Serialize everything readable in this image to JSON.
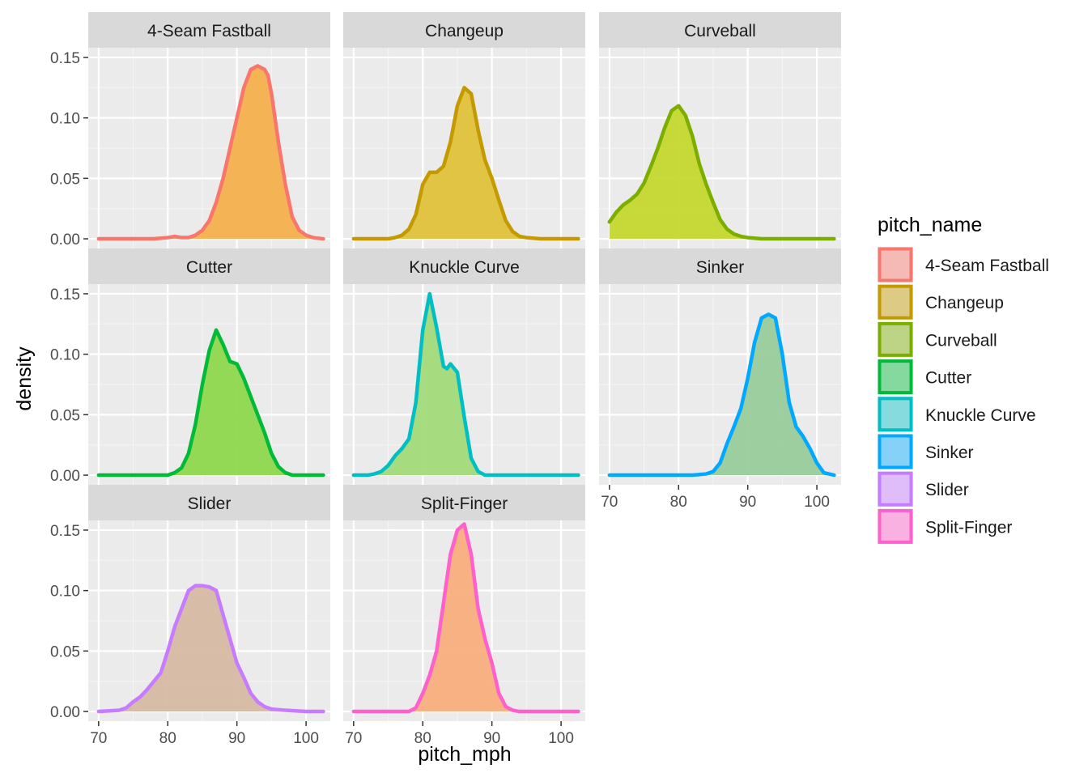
{
  "chart_data": {
    "type": "area",
    "facet_layout": "3 columns",
    "xlabel": "pitch_mph",
    "ylabel": "density",
    "xlim": [
      68.5,
      103.5
    ],
    "ylim": [
      -0.008,
      0.158
    ],
    "x_ticks": [
      70,
      80,
      90,
      100
    ],
    "x_tick_labels": [
      "70",
      "80",
      "90",
      "100"
    ],
    "y_ticks": [
      0,
      0.05,
      0.1,
      0.15
    ],
    "y_tick_labels": [
      "0.00",
      "0.05",
      "0.10",
      "0.15"
    ],
    "grid": true,
    "legend": {
      "title": "pitch_name",
      "placement": "right",
      "items": [
        "4-Seam Fastball",
        "Changeup",
        "Curveball",
        "Cutter",
        "Knuckle Curve",
        "Sinker",
        "Slider",
        "Split-Finger"
      ]
    },
    "panels": [
      {
        "name": "4-Seam Fastball",
        "line_color": "#F8766D",
        "fill_color": "#F4B04C",
        "x": [
          70,
          78,
          80,
          81,
          82,
          83,
          84,
          85,
          86,
          87,
          88,
          89,
          90,
          91,
          92,
          93,
          94,
          94.5,
          95,
          96,
          97,
          98,
          99,
          100,
          101,
          102.5
        ],
        "y": [
          0,
          0,
          0.001,
          0.002,
          0.001,
          0.001,
          0.003,
          0.007,
          0.015,
          0.03,
          0.05,
          0.075,
          0.1,
          0.125,
          0.14,
          0.143,
          0.14,
          0.135,
          0.12,
          0.08,
          0.045,
          0.018,
          0.007,
          0.003,
          0.001,
          0
        ]
      },
      {
        "name": "Changeup",
        "line_color": "#C49A00",
        "fill_color": "#E0C23A",
        "x": [
          70,
          75,
          76,
          77,
          78,
          79,
          80,
          81,
          82,
          83,
          84,
          85,
          86,
          87,
          88,
          89,
          90,
          91,
          92,
          93,
          94,
          95,
          97,
          100,
          102.5
        ],
        "y": [
          0,
          0,
          0.001,
          0.003,
          0.008,
          0.02,
          0.045,
          0.055,
          0.055,
          0.06,
          0.08,
          0.11,
          0.125,
          0.12,
          0.09,
          0.065,
          0.05,
          0.032,
          0.015,
          0.006,
          0.002,
          0.001,
          0,
          0,
          0
        ]
      },
      {
        "name": "Curveball",
        "line_color": "#7CAE00",
        "fill_color": "#C4D82E",
        "x": [
          70,
          71,
          72,
          73,
          74,
          75,
          76,
          77,
          78,
          79,
          80,
          81,
          82,
          83,
          84,
          85,
          86,
          87,
          88,
          89,
          90,
          92,
          95,
          100,
          102.5
        ],
        "y": [
          0.014,
          0.022,
          0.028,
          0.032,
          0.037,
          0.046,
          0.06,
          0.075,
          0.092,
          0.106,
          0.11,
          0.102,
          0.085,
          0.062,
          0.045,
          0.03,
          0.016,
          0.008,
          0.004,
          0.002,
          0.001,
          0,
          0,
          0,
          0
        ]
      },
      {
        "name": "Cutter",
        "line_color": "#00BA38",
        "fill_color": "#8ED84E",
        "x": [
          70,
          80,
          81,
          82,
          83,
          84,
          85,
          86,
          87,
          88,
          89,
          90,
          91,
          92,
          93,
          94,
          95,
          96,
          97,
          98,
          100,
          102.5
        ],
        "y": [
          0,
          0,
          0.002,
          0.006,
          0.018,
          0.042,
          0.075,
          0.103,
          0.12,
          0.108,
          0.094,
          0.092,
          0.08,
          0.065,
          0.05,
          0.035,
          0.018,
          0.007,
          0.002,
          0,
          0,
          0
        ]
      },
      {
        "name": "Knuckle Curve",
        "line_color": "#00BFC4",
        "fill_color": "#A2DA7A",
        "x": [
          70,
          72,
          73,
          74,
          75,
          76,
          77,
          78,
          79,
          80,
          81,
          82,
          83,
          83.5,
          84,
          85,
          86,
          87,
          88,
          89,
          92,
          102.5
        ],
        "y": [
          0,
          0,
          0.001,
          0.003,
          0.008,
          0.016,
          0.022,
          0.03,
          0.06,
          0.12,
          0.15,
          0.122,
          0.09,
          0.088,
          0.092,
          0.085,
          0.048,
          0.014,
          0.003,
          0,
          0,
          0
        ]
      },
      {
        "name": "Sinker",
        "line_color": "#00A9FF",
        "fill_color": "#98CC9C",
        "x": [
          70,
          82,
          84,
          85,
          86,
          87,
          88,
          89,
          90,
          91,
          92,
          93,
          94,
          95,
          96,
          97,
          98,
          99,
          100,
          101,
          102.5
        ],
        "y": [
          0,
          0,
          0.001,
          0.003,
          0.01,
          0.026,
          0.04,
          0.055,
          0.08,
          0.11,
          0.13,
          0.133,
          0.13,
          0.1,
          0.06,
          0.04,
          0.032,
          0.022,
          0.01,
          0.002,
          0
        ]
      },
      {
        "name": "Slider",
        "line_color": "#C77CFF",
        "fill_color": "#D6B9A4",
        "x": [
          70,
          73,
          74,
          75,
          76,
          77,
          78,
          79,
          80,
          81,
          82,
          83,
          84,
          85,
          86,
          87,
          88,
          89,
          90,
          91,
          92,
          93,
          94,
          95,
          97,
          100,
          102.5
        ],
        "y": [
          0,
          0.001,
          0.003,
          0.008,
          0.012,
          0.018,
          0.025,
          0.032,
          0.05,
          0.07,
          0.085,
          0.1,
          0.104,
          0.104,
          0.103,
          0.1,
          0.08,
          0.06,
          0.04,
          0.028,
          0.015,
          0.008,
          0.004,
          0.002,
          0.001,
          0,
          0
        ]
      },
      {
        "name": "Split-Finger",
        "line_color": "#FF61CC",
        "fill_color": "#F9AE7C",
        "x": [
          70,
          78,
          79,
          80,
          81,
          82,
          83,
          84,
          85,
          86,
          87,
          88,
          89,
          90,
          91,
          92,
          93,
          94,
          102.5
        ],
        "y": [
          0,
          0,
          0.003,
          0.015,
          0.03,
          0.05,
          0.09,
          0.13,
          0.15,
          0.155,
          0.13,
          0.085,
          0.06,
          0.04,
          0.015,
          0.004,
          0.001,
          0,
          0
        ]
      }
    ]
  }
}
